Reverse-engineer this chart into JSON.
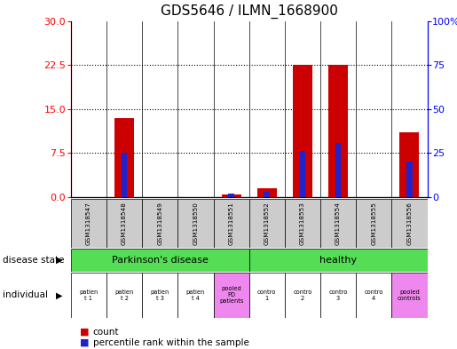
{
  "title": "GDS5646 / ILMN_1668900",
  "samples": [
    "GSM1318547",
    "GSM1318548",
    "GSM1318549",
    "GSM1318550",
    "GSM1318551",
    "GSM1318552",
    "GSM1318553",
    "GSM1318554",
    "GSM1318555",
    "GSM1318556"
  ],
  "count_values": [
    0,
    13.5,
    0,
    0,
    0.5,
    1.5,
    22.5,
    22.5,
    0,
    11.0
  ],
  "percentile_values": [
    0,
    25,
    0,
    0,
    2,
    3,
    26,
    31,
    0,
    20
  ],
  "left_ylim": [
    0,
    30
  ],
  "right_ylim": [
    0,
    100
  ],
  "left_yticks": [
    0,
    7.5,
    15,
    22.5,
    30
  ],
  "right_yticks": [
    0,
    25,
    50,
    75,
    100
  ],
  "right_yticklabels": [
    "0",
    "25",
    "50",
    "75",
    "100%"
  ],
  "bar_color_red": "#cc0000",
  "bar_color_blue": "#2222cc",
  "disease_state_labels": [
    "Parkinson's disease",
    "healthy"
  ],
  "disease_state_color_green": "#55dd55",
  "individual_labels": [
    "patien\nt 1",
    "patien\nt 2",
    "patien\nt 3",
    "patien\nt 4",
    "pooled\nPD\npatients",
    "contro\n1",
    "contro\n2",
    "contro\n3",
    "contro\n4",
    "pooled\ncontrols"
  ],
  "individual_colors": [
    "#ffffff",
    "#ffffff",
    "#ffffff",
    "#ffffff",
    "#ee88ee",
    "#ffffff",
    "#ffffff",
    "#ffffff",
    "#ffffff",
    "#ee88ee"
  ],
  "sample_box_color": "#cccccc",
  "title_fontsize": 11,
  "bar_width": 0.55
}
